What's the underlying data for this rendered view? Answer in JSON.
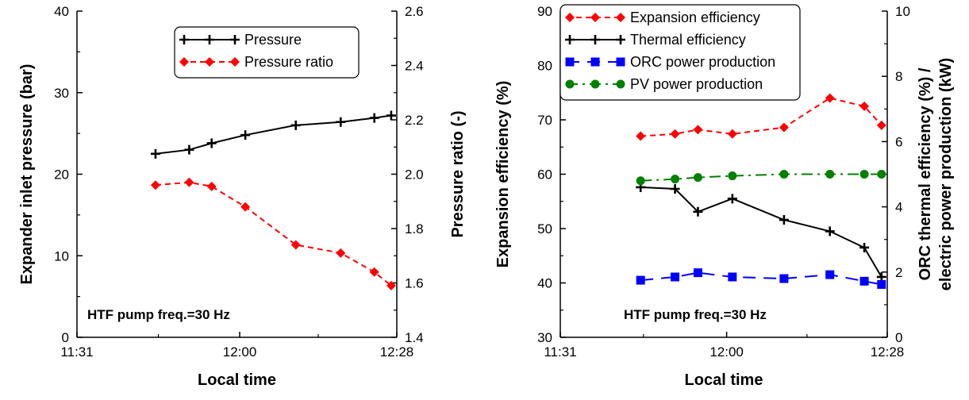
{
  "chart_data": [
    {
      "type": "line",
      "xlabel": "Local time",
      "ylabel": "Expander inlet pressure (bar)",
      "ylabel_right": "Pressure ratio (-)",
      "xlim": [
        "11:31",
        "12:28"
      ],
      "ylim": [
        0,
        40
      ],
      "ylim_right": [
        1.4,
        2.6
      ],
      "x_ticks": [
        "11:31",
        "12:00",
        "12:28"
      ],
      "y_ticks": [
        "0",
        "10",
        "20",
        "30",
        "40"
      ],
      "y_ticks_right": [
        "1.4",
        "1.6",
        "1.8",
        "2.0",
        "2.2",
        "2.4",
        "2.6"
      ],
      "annotation": "HTF pump freq.=30 Hz",
      "legend_position": "top-right",
      "grid": false,
      "series": [
        {
          "name": "Pressure",
          "axis": "left",
          "color": "#000000",
          "marker": "plus",
          "dash": "solid",
          "x": [
            "11:45",
            "11:51",
            "11:55",
            "12:01",
            "12:10",
            "12:18",
            "12:24",
            "12:27"
          ],
          "y": [
            22.5,
            23.0,
            23.8,
            24.8,
            26.0,
            26.4,
            26.9,
            27.2
          ]
        },
        {
          "name": "Pressure ratio",
          "axis": "right",
          "color": "#ff0000",
          "marker": "diamond",
          "dash": "dashed",
          "x": [
            "11:45",
            "11:51",
            "11:55",
            "12:01",
            "12:10",
            "12:18",
            "12:24",
            "12:27"
          ],
          "y": [
            1.96,
            1.97,
            1.955,
            1.88,
            1.74,
            1.71,
            1.64,
            1.59
          ]
        }
      ]
    },
    {
      "type": "line",
      "xlabel": "Local time",
      "ylabel": "Expansion efficiency (%)",
      "ylabel_right_line1": "ORC thermal efficiency (%) /",
      "ylabel_right_line2": "electric power production (kW)",
      "xlim": [
        "11:31",
        "12:28"
      ],
      "ylim": [
        30,
        90
      ],
      "ylim_right": [
        0,
        10
      ],
      "x_ticks": [
        "11:31",
        "12:00",
        "12:28"
      ],
      "y_ticks": [
        "30",
        "40",
        "50",
        "60",
        "70",
        "80",
        "90"
      ],
      "y_ticks_right": [
        "0",
        "2",
        "4",
        "6",
        "8",
        "10"
      ],
      "annotation": "HTF pump freq.=30 Hz",
      "legend_position": "top-left",
      "grid": false,
      "series": [
        {
          "name": "Expansion efficiency",
          "axis": "left",
          "color": "#ff0000",
          "marker": "diamond",
          "dash": "dashed",
          "x": [
            "11:45",
            "11:51",
            "11:55",
            "12:01",
            "12:10",
            "12:18",
            "12:24",
            "12:27"
          ],
          "y": [
            67.0,
            67.4,
            68.2,
            67.4,
            68.6,
            74.0,
            72.5,
            69.0
          ]
        },
        {
          "name": "Thermal efficiency",
          "axis": "right",
          "color": "#000000",
          "marker": "plus",
          "dash": "solid",
          "x": [
            "11:45",
            "11:51",
            "11:55",
            "12:01",
            "12:10",
            "12:18",
            "12:24",
            "12:27"
          ],
          "y": [
            4.6,
            4.55,
            3.85,
            4.25,
            3.6,
            3.25,
            2.75,
            1.85
          ]
        },
        {
          "name": "ORC power production",
          "axis": "right",
          "color": "#0000ff",
          "marker": "square",
          "dash": "longdash",
          "x": [
            "11:45",
            "11:51",
            "11:55",
            "12:01",
            "12:10",
            "12:18",
            "12:24",
            "12:27"
          ],
          "y": [
            1.75,
            1.85,
            1.98,
            1.85,
            1.8,
            1.92,
            1.72,
            1.62
          ]
        },
        {
          "name": "PV power production",
          "axis": "right",
          "color": "#008000",
          "marker": "circle",
          "dash": "dashdot",
          "x": [
            "11:45",
            "11:51",
            "11:55",
            "12:01",
            "12:10",
            "12:18",
            "12:24",
            "12:27"
          ],
          "y": [
            4.8,
            4.85,
            4.9,
            4.95,
            5.0,
            5.0,
            5.0,
            5.0
          ]
        }
      ]
    }
  ]
}
